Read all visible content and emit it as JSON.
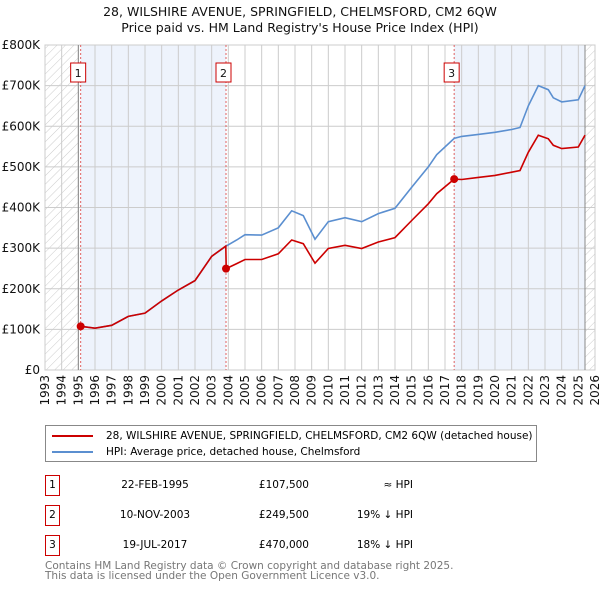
{
  "title": "28, WILSHIRE AVENUE, SPRINGFIELD, CHELMSFORD, CM2 6QW",
  "subtitle": "Price paid vs. HM Land Registry's House Price Index (HPI)",
  "colors": {
    "property": "#cc0000",
    "hpi": "#5b8fd0",
    "shade": "#eef3fc",
    "grid": "#cccccc"
  },
  "chart_data": {
    "type": "line",
    "title": "28, WILSHIRE AVENUE, SPRINGFIELD, CHELMSFORD, CM2 6QW",
    "subtitle": "Price paid vs. HM Land Registry's House Price Index (HPI)",
    "xlim": [
      1993,
      2026
    ],
    "ylim": [
      0,
      800000
    ],
    "x_ticks": [
      "1993",
      "1994",
      "1995",
      "1996",
      "1997",
      "1998",
      "1999",
      "2000",
      "2001",
      "2002",
      "2003",
      "2004",
      "2005",
      "2006",
      "2007",
      "2008",
      "2009",
      "2010",
      "2011",
      "2012",
      "2013",
      "2014",
      "2015",
      "2016",
      "2017",
      "2018",
      "2019",
      "2020",
      "2021",
      "2022",
      "2023",
      "2024",
      "2025",
      "2026"
    ],
    "y_ticks": [
      {
        "v": 0,
        "label": "£0"
      },
      {
        "v": 100000,
        "label": "£100K"
      },
      {
        "v": 200000,
        "label": "£200K"
      },
      {
        "v": 300000,
        "label": "£300K"
      },
      {
        "v": 400000,
        "label": "£400K"
      },
      {
        "v": 500000,
        "label": "£500K"
      },
      {
        "v": 600000,
        "label": "£600K"
      },
      {
        "v": 700000,
        "label": "£700K"
      },
      {
        "v": 800000,
        "label": "£800K"
      }
    ],
    "grid": true,
    "series": [
      {
        "name": "28, WILSHIRE AVENUE, SPRINGFIELD, CHELMSFORD, CM2 6QW (detached house)",
        "color": "#cc0000",
        "x": [
          1995.15,
          1996,
          1997,
          1998,
          1999,
          2000,
          2001,
          2002,
          2003,
          2003.85,
          2003.87,
          2004.5,
          2005,
          2006,
          2007,
          2007.8,
          2008.5,
          2009.2,
          2010,
          2011,
          2012,
          2013,
          2014,
          2015,
          2016,
          2016.5,
          2017.55,
          2018,
          2019,
          2020,
          2021,
          2021.5,
          2022,
          2022.6,
          2023.2,
          2023.5,
          2024,
          2025,
          2025.4
        ],
        "y": [
          107500,
          103000,
          110000,
          132000,
          140000,
          170000,
          197000,
          220000,
          280000,
          305000,
          249500,
          262000,
          272000,
          272000,
          286000,
          320000,
          311000,
          263000,
          299000,
          307000,
          299000,
          315000,
          326000,
          368000,
          409000,
          434000,
          470000,
          469000,
          474000,
          479000,
          487000,
          491000,
          536000,
          578000,
          569000,
          553000,
          545000,
          549000,
          578000
        ]
      },
      {
        "name": "HPI: Average price, detached house, Chelmsford",
        "color": "#5b8fd0",
        "x": [
          1995.15,
          1996,
          1997,
          1998,
          1999,
          2000,
          2001,
          2002,
          2003,
          2003.87,
          2004.5,
          2005,
          2006,
          2007,
          2007.8,
          2008.5,
          2009.2,
          2010,
          2011,
          2012,
          2013,
          2014,
          2015,
          2016,
          2016.5,
          2017.55,
          2018,
          2019,
          2020,
          2021,
          2021.5,
          2022,
          2022.6,
          2023.2,
          2023.5,
          2024,
          2025,
          2025.4
        ],
        "y": [
          107500,
          103000,
          110000,
          132000,
          140000,
          170000,
          197000,
          220000,
          280000,
          305000,
          320000,
          333000,
          332000,
          350000,
          392000,
          380000,
          322000,
          365000,
          375000,
          365000,
          385000,
          398000,
          450000,
          500000,
          530000,
          570000,
          575000,
          580000,
          585000,
          592000,
          597000,
          650000,
          700000,
          690000,
          670000,
          660000,
          665000,
          700000
        ]
      }
    ],
    "sales": [
      {
        "id": "1",
        "x": 1995.14,
        "price": 107500
      },
      {
        "id": "2",
        "x": 2003.86,
        "price": 249500
      },
      {
        "id": "3",
        "x": 2017.55,
        "price": 470000
      }
    ],
    "shaded_ranges": [
      [
        1995.14,
        2003.86
      ],
      [
        2017.55,
        2025.4
      ]
    ],
    "hatched_ranges": [
      [
        1993,
        1995.0
      ],
      [
        2025.4,
        2026
      ]
    ],
    "legend_position": "below"
  },
  "legend": {
    "property": "28, WILSHIRE AVENUE, SPRINGFIELD, CHELMSFORD, CM2 6QW (detached house)",
    "hpi": "HPI: Average price, detached house, Chelmsford"
  },
  "sales_table": [
    {
      "num": "1",
      "date": "22-FEB-1995",
      "price": "£107,500",
      "hpi": "≈ HPI"
    },
    {
      "num": "2",
      "date": "10-NOV-2003",
      "price": "£249,500",
      "hpi": "19% ↓ HPI"
    },
    {
      "num": "3",
      "date": "19-JUL-2017",
      "price": "£470,000",
      "hpi": "18% ↓ HPI"
    }
  ],
  "footer": {
    "line1": "Contains HM Land Registry data © Crown copyright and database right 2025.",
    "line2": "This data is licensed under the Open Government Licence v3.0."
  }
}
